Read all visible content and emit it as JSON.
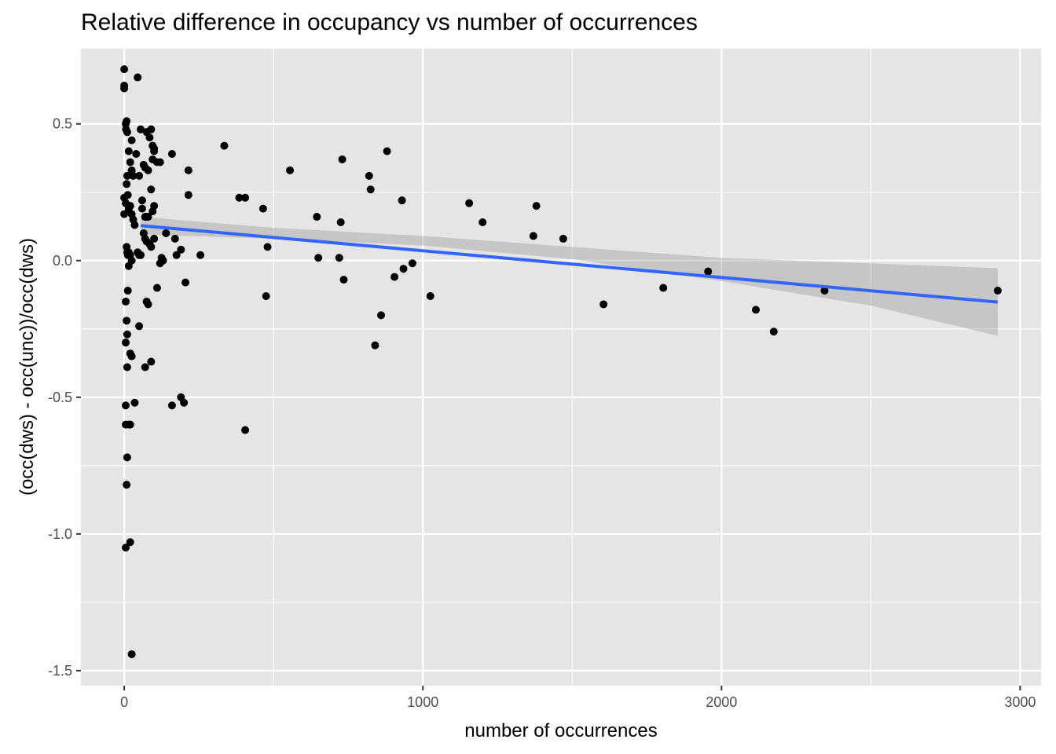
{
  "chart_data": {
    "type": "scatter",
    "title": "Relative difference in occupancy vs number of occurrences",
    "xlabel": "number of occurrences",
    "ylabel": "(occ(dws) - occ(unc))/occ(dws)",
    "xlim": [
      -145,
      3070
    ],
    "ylim": [
      -1.555,
      0.775
    ],
    "x_ticks": [
      0,
      1000,
      2000,
      3000
    ],
    "x_tick_labels": [
      "0",
      "1000",
      "2000",
      "3000"
    ],
    "y_ticks": [
      -1.5,
      -1.0,
      -0.5,
      0.0,
      0.5
    ],
    "y_tick_labels": [
      "-1.5",
      "-1.0",
      "-0.5",
      "0.0",
      "0.5"
    ],
    "x_minor_ticks": [
      500,
      1500,
      2500
    ],
    "y_minor_ticks": [
      -1.25,
      -0.75,
      -0.25,
      0.25
    ],
    "grid": true,
    "legend": "none",
    "colors": {
      "panel_background": "#e5e5e5",
      "grid": "#ffffff",
      "points": "#000000",
      "fit_line": "#3366ff",
      "confidence_band": "#999999"
    },
    "points": [
      [
        0,
        0.7
      ],
      [
        0,
        0.64
      ],
      [
        0,
        0.63
      ],
      [
        5,
        0.5
      ],
      [
        6,
        0.48
      ],
      [
        8,
        0.51
      ],
      [
        10,
        0.47
      ],
      [
        15,
        0.4
      ],
      [
        20,
        0.36
      ],
      [
        25,
        0.44
      ],
      [
        25,
        0.33
      ],
      [
        30,
        0.31
      ],
      [
        10,
        0.31
      ],
      [
        8,
        0.28
      ],
      [
        12,
        0.24
      ],
      [
        0,
        0.23
      ],
      [
        5,
        0.21
      ],
      [
        15,
        0.19
      ],
      [
        20,
        0.2
      ],
      [
        25,
        0.17
      ],
      [
        0,
        0.17
      ],
      [
        30,
        0.15
      ],
      [
        35,
        0.13
      ],
      [
        40,
        0.39
      ],
      [
        45,
        0.67
      ],
      [
        50,
        0.31
      ],
      [
        55,
        0.48
      ],
      [
        60,
        0.22
      ],
      [
        65,
        0.35
      ],
      [
        70,
        0.34
      ],
      [
        75,
        0.47
      ],
      [
        80,
        0.33
      ],
      [
        85,
        0.45
      ],
      [
        90,
        0.48
      ],
      [
        95,
        0.42
      ],
      [
        100,
        0.41
      ],
      [
        100,
        0.4
      ],
      [
        110,
        0.36
      ],
      [
        120,
        0.36
      ],
      [
        95,
        0.37
      ],
      [
        90,
        0.26
      ],
      [
        100,
        0.2
      ],
      [
        95,
        0.18
      ],
      [
        60,
        0.19
      ],
      [
        70,
        0.16
      ],
      [
        75,
        0.16
      ],
      [
        80,
        0.16
      ],
      [
        65,
        0.1
      ],
      [
        70,
        0.08
      ],
      [
        75,
        0.07
      ],
      [
        85,
        0.06
      ],
      [
        90,
        0.05
      ],
      [
        100,
        0.08
      ],
      [
        8,
        0.05
      ],
      [
        10,
        0.03
      ],
      [
        12,
        0.02
      ],
      [
        15,
        0.03
      ],
      [
        20,
        0.02
      ],
      [
        25,
        0.0
      ],
      [
        15,
        -0.02
      ],
      [
        45,
        0.03
      ],
      [
        50,
        0.02
      ],
      [
        55,
        0.02
      ],
      [
        125,
        0.01
      ],
      [
        130,
        0.0
      ],
      [
        120,
        -0.01
      ],
      [
        110,
        -0.1
      ],
      [
        12,
        -0.11
      ],
      [
        5,
        -0.15
      ],
      [
        8,
        -0.22
      ],
      [
        50,
        -0.24
      ],
      [
        10,
        -0.27
      ],
      [
        5,
        -0.3
      ],
      [
        75,
        -0.15
      ],
      [
        80,
        -0.16
      ],
      [
        20,
        -0.34
      ],
      [
        25,
        -0.35
      ],
      [
        90,
        -0.37
      ],
      [
        70,
        -0.39
      ],
      [
        10,
        -0.39
      ],
      [
        35,
        -0.52
      ],
      [
        5,
        -0.53
      ],
      [
        5,
        -0.6
      ],
      [
        15,
        -0.6
      ],
      [
        20,
        -0.6
      ],
      [
        10,
        -0.72
      ],
      [
        8,
        -0.82
      ],
      [
        20,
        -1.03
      ],
      [
        5,
        -1.05
      ],
      [
        25,
        -1.44
      ],
      [
        140,
        0.1
      ],
      [
        160,
        0.39
      ],
      [
        170,
        0.08
      ],
      [
        175,
        0.02
      ],
      [
        190,
        0.04
      ],
      [
        190,
        -0.5
      ],
      [
        200,
        -0.52
      ],
      [
        160,
        -0.53
      ],
      [
        205,
        -0.08
      ],
      [
        215,
        0.24
      ],
      [
        215,
        0.33
      ],
      [
        255,
        0.02
      ],
      [
        335,
        0.42
      ],
      [
        385,
        0.23
      ],
      [
        405,
        0.23
      ],
      [
        405,
        -0.62
      ],
      [
        465,
        0.19
      ],
      [
        475,
        -0.13
      ],
      [
        480,
        0.05
      ],
      [
        555,
        0.33
      ],
      [
        645,
        0.16
      ],
      [
        650,
        0.01
      ],
      [
        720,
        0.01
      ],
      [
        725,
        0.14
      ],
      [
        730,
        0.37
      ],
      [
        735,
        -0.07
      ],
      [
        820,
        0.31
      ],
      [
        825,
        0.26
      ],
      [
        840,
        -0.31
      ],
      [
        860,
        -0.2
      ],
      [
        880,
        0.4
      ],
      [
        905,
        -0.06
      ],
      [
        930,
        0.22
      ],
      [
        935,
        -0.03
      ],
      [
        965,
        -0.01
      ],
      [
        1025,
        -0.13
      ],
      [
        1155,
        0.21
      ],
      [
        1200,
        0.14
      ],
      [
        1370,
        0.09
      ],
      [
        1380,
        0.2
      ],
      [
        1470,
        0.08
      ],
      [
        1605,
        -0.16
      ],
      [
        1805,
        -0.1
      ],
      [
        1955,
        -0.04
      ],
      [
        2115,
        -0.18
      ],
      [
        2175,
        -0.26
      ],
      [
        2345,
        -0.11
      ],
      [
        2925,
        -0.11
      ]
    ],
    "fit_line": {
      "method": "linear",
      "x": [
        55,
        2925
      ],
      "y": [
        0.128,
        -0.152
      ]
    },
    "confidence_band": {
      "x": [
        55,
        500,
        1000,
        1500,
        2000,
        2500,
        2925
      ],
      "lower": [
        0.095,
        0.08,
        0.055,
        0.005,
        -0.075,
        -0.165,
        -0.275
      ],
      "upper": [
        0.16,
        0.12,
        0.09,
        0.05,
        0.01,
        -0.01,
        -0.028
      ]
    }
  }
}
